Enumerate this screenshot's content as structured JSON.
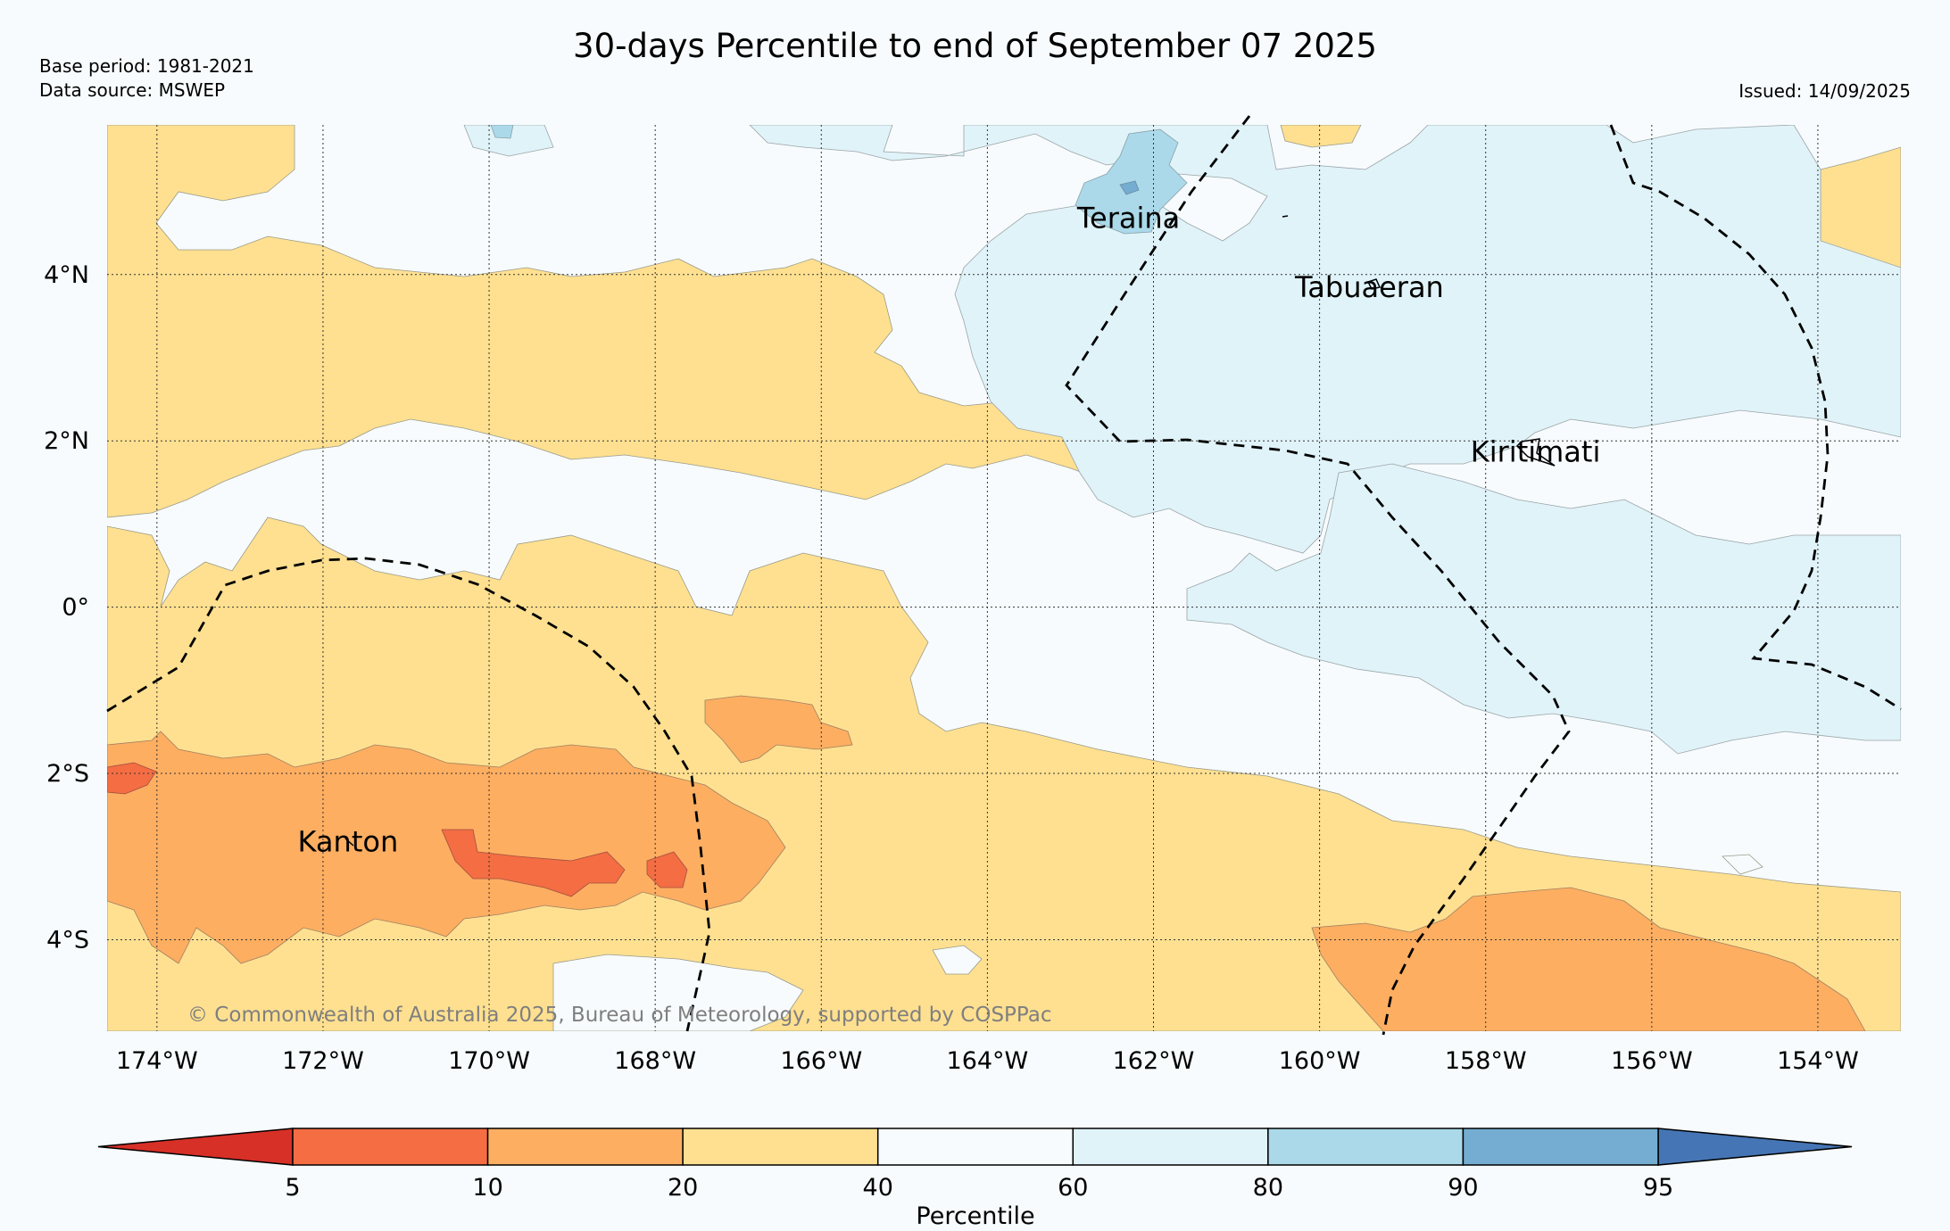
{
  "title": "30-days Percentile to end of September 07 2025",
  "base_period": "Base period: 1981-2021",
  "data_source": "Data source: MSWEP",
  "issued": "Issued: 14/09/2025",
  "copyright": "© Commonwealth of Australia 2025, Bureau of Meteorology, supported by COSPPac",
  "map": {
    "lon_range": [
      -174.6,
      -153.0
    ],
    "lat_range": [
      -5.1,
      5.8
    ],
    "lon_ticks": [
      {
        "value": -174,
        "label": "174°W"
      },
      {
        "value": -172,
        "label": "172°W"
      },
      {
        "value": -170,
        "label": "170°W"
      },
      {
        "value": -168,
        "label": "168°W"
      },
      {
        "value": -166,
        "label": "166°W"
      },
      {
        "value": -164,
        "label": "164°W"
      },
      {
        "value": -162,
        "label": "162°W"
      },
      {
        "value": -160,
        "label": "160°W"
      },
      {
        "value": -158,
        "label": "158°W"
      },
      {
        "value": -156,
        "label": "156°W"
      },
      {
        "value": -154,
        "label": "154°W"
      }
    ],
    "lat_ticks": [
      {
        "value": 4,
        "label": "4°N"
      },
      {
        "value": 2,
        "label": "2°N"
      },
      {
        "value": 0,
        "label": "0°"
      },
      {
        "value": -2,
        "label": "2°S"
      },
      {
        "value": -4,
        "label": "4°S"
      }
    ],
    "places": [
      {
        "name": "Teraina",
        "lon": -162.3,
        "lat": 4.68
      },
      {
        "name": "Tabuaeran",
        "lon": -159.4,
        "lat": 3.85
      },
      {
        "name": "Kiritimati",
        "lon": -157.4,
        "lat": 1.87
      },
      {
        "name": "Kanton",
        "lon": -171.7,
        "lat": -2.82
      }
    ]
  },
  "colorbar": {
    "label": "Percentile",
    "ticks": [
      "5",
      "10",
      "20",
      "40",
      "60",
      "80",
      "90",
      "95"
    ],
    "colors": {
      "below_5": "#d73027",
      "5_10": "#f46d43",
      "10_20": "#fdae61",
      "20_40": "#fee090",
      "40_60": "#f7fbfd",
      "60_80": "#e0f3f8",
      "80_90": "#abd9e9",
      "90_95": "#74add1",
      "above_95": "#4575b4"
    }
  }
}
